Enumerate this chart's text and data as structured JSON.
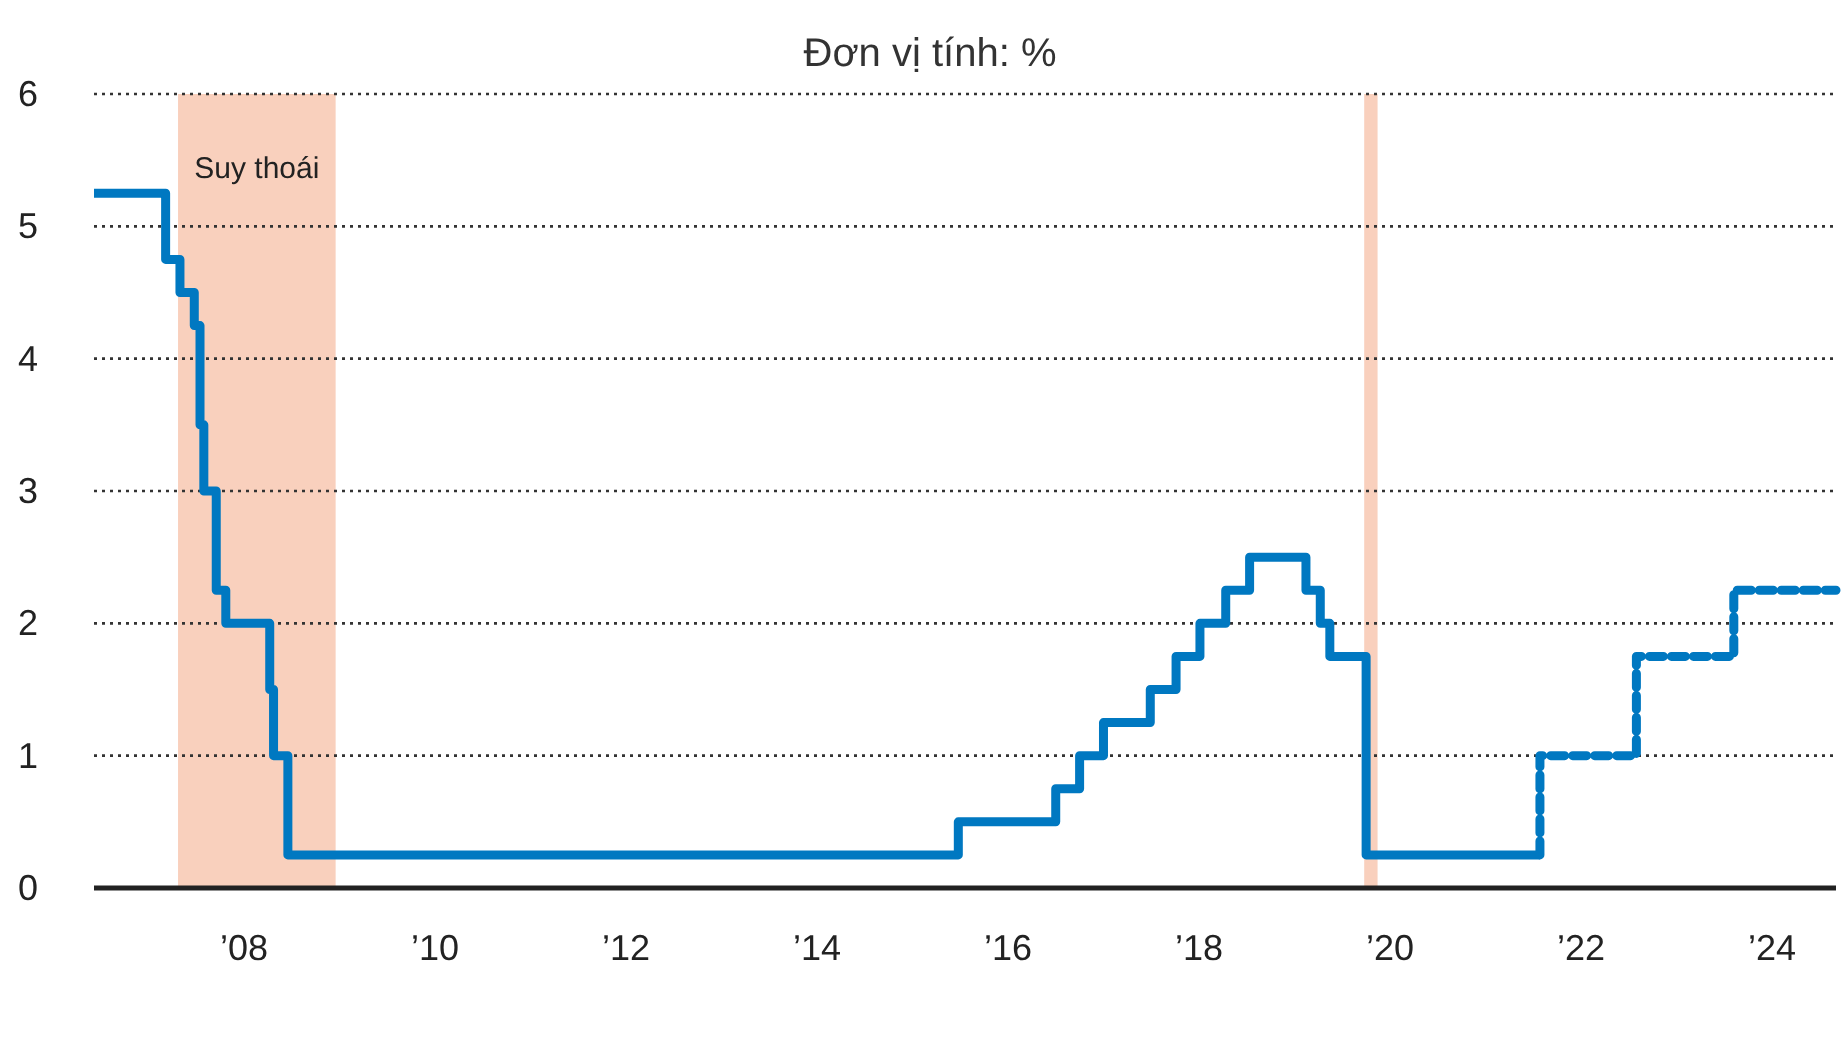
{
  "chart_data": {
    "type": "step",
    "subtitle": "Đơn vị tính: %",
    "series": [
      {
        "color": "#0078c1",
        "line_style": "solid",
        "x": [
          2006.43,
          2007.18,
          2007.33,
          2007.48,
          2007.54,
          2007.58,
          2007.71,
          2007.81,
          2008.27,
          2008.31,
          2008.46,
          2015.48,
          2016.5,
          2016.75,
          2017.0,
          2017.49,
          2017.76,
          2018.01,
          2018.28,
          2018.53,
          2019.12,
          2019.27,
          2019.37,
          2019.75,
          2021.57
        ],
        "values": [
          5.25,
          4.75,
          4.5,
          4.25,
          3.5,
          3.0,
          2.25,
          2.0,
          1.5,
          1.0,
          0.25,
          0.5,
          0.75,
          1.0,
          1.25,
          1.5,
          1.75,
          2.0,
          2.25,
          2.5,
          2.25,
          2.0,
          1.75,
          0.25,
          0.25
        ]
      },
      {
        "color": "#0078c1",
        "line_style": "dashed",
        "x": [
          2021.57,
          2021.57,
          2022.58,
          2023.6,
          2024.67
        ],
        "values": [
          0.25,
          1.0,
          1.75,
          2.25,
          2.25
        ]
      }
    ],
    "bands": [
      {
        "axis": "x",
        "from": 2007.31,
        "to": 2008.96,
        "label": "Suy thoái",
        "color": "#f9d0bd"
      },
      {
        "axis": "x",
        "from": 2019.73,
        "to": 2019.87,
        "label": null,
        "color": "#f9d0bd"
      }
    ],
    "xlim": [
      2006.43,
      2024.67
    ],
    "xticks": [
      {
        "value": 2008,
        "label": "’08"
      },
      {
        "value": 2010,
        "label": "’10"
      },
      {
        "value": 2012,
        "label": "’12"
      },
      {
        "value": 2014,
        "label": "’14"
      },
      {
        "value": 2016,
        "label": "’16"
      },
      {
        "value": 2018,
        "label": "’18"
      },
      {
        "value": 2020,
        "label": "’20"
      },
      {
        "value": 2022,
        "label": "’22"
      },
      {
        "value": 2024,
        "label": "’24"
      }
    ],
    "ylim": [
      0,
      6
    ],
    "yticks": [
      0,
      1,
      2,
      3,
      4,
      5,
      6
    ],
    "grid": "y"
  }
}
